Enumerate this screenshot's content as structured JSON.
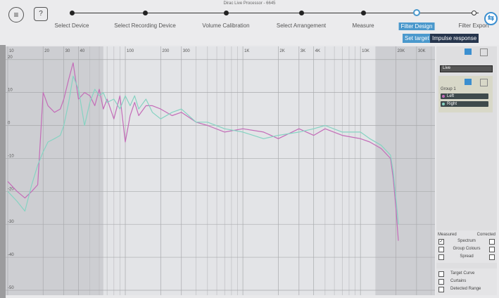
{
  "window_title": "Dirac Live Processor - 6645",
  "steps": [
    "Select Device",
    "Select Recording Device",
    "Volume Calibration",
    "Select Arrangement",
    "Measure",
    "Filter Design",
    "Filter Export"
  ],
  "active_step": 5,
  "tabs": [
    "Set target",
    "Impulse response"
  ],
  "chart_data": {
    "type": "line",
    "log_x": true,
    "grid": true,
    "x": [
      10,
      12,
      14,
      16,
      18,
      20,
      22,
      25,
      28,
      30,
      33,
      36,
      40,
      45,
      50,
      55,
      60,
      65,
      70,
      80,
      90,
      100,
      110,
      120,
      130,
      150,
      170,
      200,
      250,
      300,
      400,
      500,
      700,
      1000,
      1500,
      2000,
      3000,
      4000,
      5000,
      7000,
      10000,
      12000,
      15000,
      18000,
      19000,
      20000,
      21000
    ],
    "series": [
      {
        "name": "Left",
        "color": "#c46cb8",
        "values": [
          -17,
          -20,
          -22,
          -20,
          -18,
          10,
          6,
          4,
          5,
          8,
          14,
          19,
          8,
          10,
          9,
          6,
          11,
          5,
          8,
          2,
          9,
          -5,
          3,
          7,
          3,
          6,
          6,
          5,
          3,
          4,
          1,
          0,
          -2,
          -1,
          -2,
          -4,
          -1,
          -3,
          -1,
          -3,
          -4,
          -5,
          -7,
          -10,
          -16,
          -25,
          -35
        ]
      },
      {
        "name": "Right",
        "color": "#86d3c2",
        "values": [
          -20,
          -23,
          -26,
          -18,
          -12,
          -8,
          -5,
          -4,
          -3,
          0,
          7,
          15,
          11,
          0,
          7,
          11,
          9,
          10,
          7,
          8,
          5,
          9,
          6,
          9,
          5,
          8,
          4,
          2,
          4,
          5,
          1,
          1,
          -1,
          -2,
          -4,
          -3,
          -2,
          -1,
          0,
          -2,
          -2,
          -4,
          -6,
          -9,
          -14,
          -22,
          -30
        ]
      }
    ],
    "xlim": [
      9.6,
      43000
    ],
    "ylim": [
      -51.5,
      24
    ],
    "xticks": [
      10,
      20,
      30,
      40,
      100,
      200,
      300,
      {
        "value": 1000,
        "label": "1K"
      },
      {
        "value": 2000,
        "label": "2K"
      },
      {
        "value": 3000,
        "label": "3K"
      },
      {
        "value": 4000,
        "label": "4K"
      },
      {
        "value": 10000,
        "label": "10K"
      },
      {
        "value": 20000,
        "label": "20K"
      },
      {
        "value": 30000,
        "label": "30K"
      }
    ],
    "x_minor_ticks": [
      50,
      60,
      70,
      80,
      90,
      400,
      500,
      600,
      700,
      800,
      900,
      5000,
      6000,
      7000,
      8000,
      9000,
      40000
    ],
    "yticks": [
      20,
      10,
      0,
      -10,
      -20,
      -30,
      -40,
      -50
    ],
    "curtains": [
      65,
      13400
    ]
  },
  "sidebar": {
    "live": "Live",
    "group": "Group 1",
    "display_header": [
      "Measured",
      "Corrected"
    ],
    "display_options": [
      {
        "label": "Spectrum",
        "measured": true,
        "corrected": false
      },
      {
        "label": "Group Colours",
        "measured": false,
        "corrected": false
      },
      {
        "label": "Spread",
        "measured": false,
        "corrected": false
      }
    ],
    "overlays": [
      {
        "label": "Target Curve",
        "checked": false
      },
      {
        "label": "Curtains",
        "checked": false
      },
      {
        "label": "Detected Range",
        "checked": false
      }
    ]
  }
}
